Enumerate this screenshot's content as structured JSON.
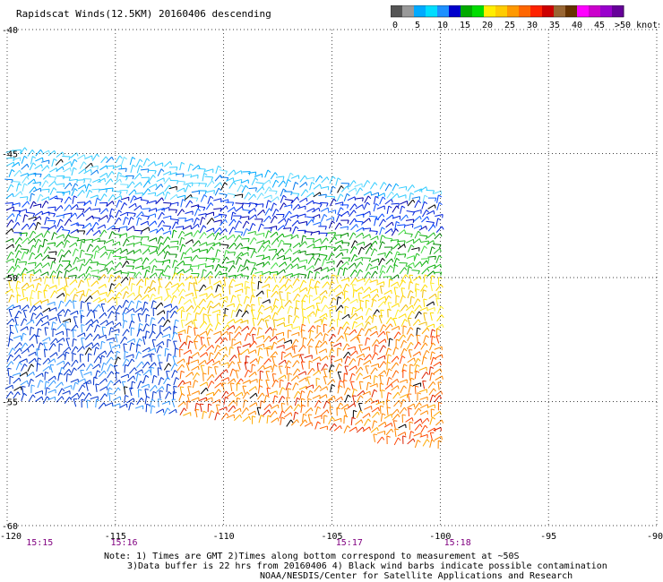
{
  "title": "Rapidscat Winds(12.5KM) 20160406 descending",
  "colorbar": {
    "segments": [
      {
        "color": "#555555"
      },
      {
        "color": "#999999"
      },
      {
        "color": "#00aaff"
      },
      {
        "color": "#00ddff"
      },
      {
        "color": "#1e90ff"
      },
      {
        "color": "#0000cc"
      },
      {
        "color": "#00aa00"
      },
      {
        "color": "#00dd00"
      },
      {
        "color": "#ffee00"
      },
      {
        "color": "#ffcc00"
      },
      {
        "color": "#ff9900"
      },
      {
        "color": "#ff6600"
      },
      {
        "color": "#ff2200"
      },
      {
        "color": "#cc0000"
      },
      {
        "color": "#996633"
      },
      {
        "color": "#663300"
      },
      {
        "color": "#ff00ff"
      },
      {
        "color": "#cc00cc"
      },
      {
        "color": "#9900cc"
      },
      {
        "color": "#660099"
      }
    ],
    "labels": [
      "0",
      "5",
      "10",
      "15",
      "20",
      "25",
      "30",
      "35",
      "40",
      "45",
      ">50 knots"
    ]
  },
  "map": {
    "lon_range": [
      -120,
      -90
    ],
    "lat_range": [
      -60,
      -40
    ],
    "x_ticks": [
      "-120",
      "-115",
      "-110",
      "-105",
      "-100",
      "-95",
      "-90"
    ],
    "y_ticks": [
      "-40",
      "-45",
      "-50",
      "-55",
      "-60"
    ],
    "time_labels": [
      {
        "lon": -118.5,
        "text": "15:15"
      },
      {
        "lon": -114.6,
        "text": "15:16"
      },
      {
        "lon": -104.2,
        "text": "15:17"
      },
      {
        "lon": -99.2,
        "text": "15:18"
      }
    ],
    "swath": {
      "lon_min": -120,
      "lon_max": -100,
      "lat_top_west": -44.8,
      "lat_top_east": -46.5,
      "lat_bottom_west": -54.8,
      "lat_bottom_east": -56.8
    },
    "wind_zones": [
      {
        "lat_from": -44.8,
        "lat_to": -46.8,
        "color": "#33ccff",
        "speed_knots": 10
      },
      {
        "lat_from": -46.8,
        "lat_to": -48.2,
        "color": "#0022dd",
        "speed_knots": 15
      },
      {
        "lat_from": -48.2,
        "lat_to": -50.0,
        "color": "#22bb22",
        "speed_knots": 18
      },
      {
        "lat_from": -50.0,
        "lat_to": -52.0,
        "color": "#ffdd00",
        "speed_knots": 22
      },
      {
        "lat_from": -52.0,
        "lat_to": -56.8,
        "color": "#ff8800",
        "speed_knots": 28
      }
    ],
    "west_blue_zone": {
      "lon_to": -112,
      "lat_from": -51.0,
      "lat_to": -55.5,
      "color": "#0033cc"
    }
  },
  "notes": [
    "Note: 1) Times are GMT 2)Times along bottom correspond to measurement at ~50S",
    "3)Data buffer is 22 hrs from 20160406 4) Black wind barbs indicate possible contamination",
    "NOAA/NESDIS/Center for Satellite Applications and Research"
  ]
}
